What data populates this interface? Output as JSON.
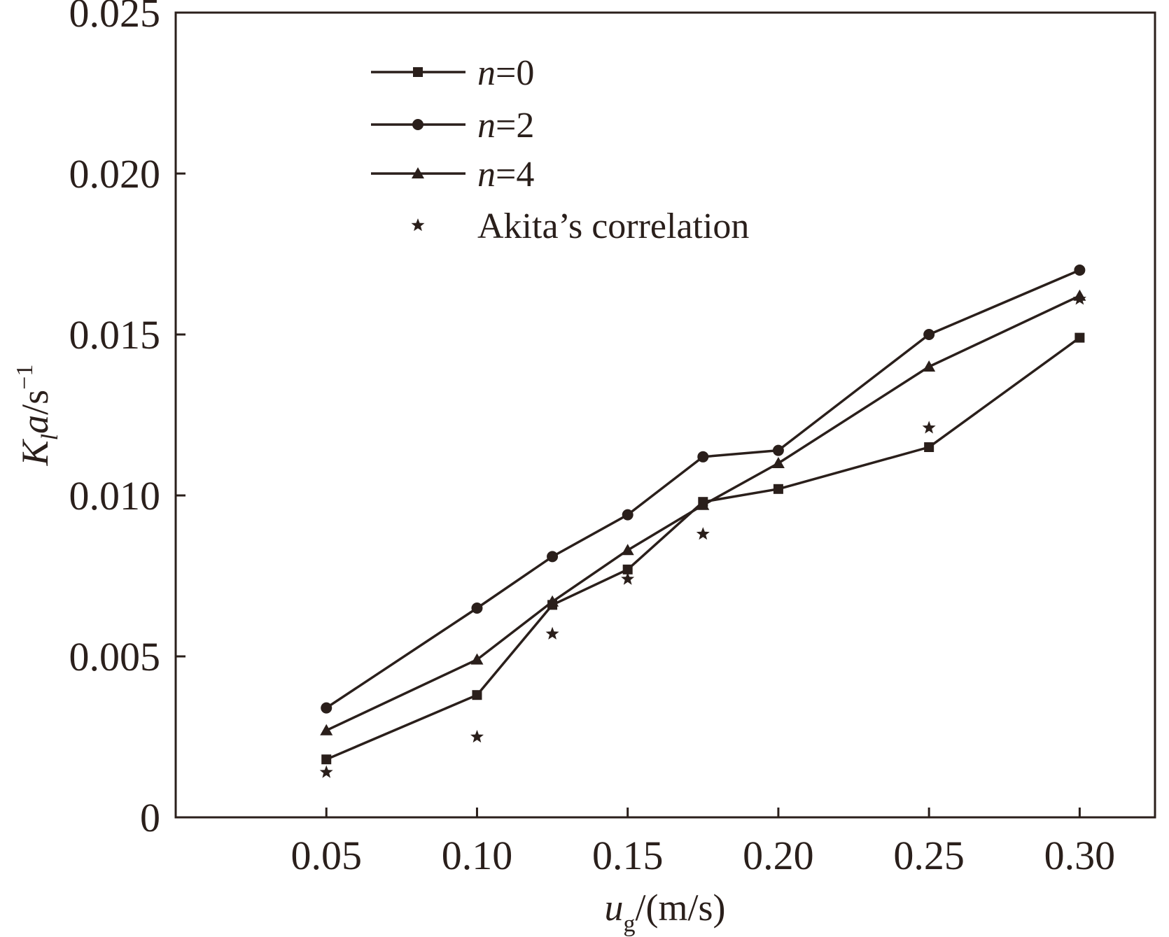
{
  "chart_data": {
    "type": "line",
    "title": "",
    "xlabel": {
      "main": "u",
      "sub": "g",
      "rest": "/(m/s)"
    },
    "ylabel": {
      "k": "K",
      "sub": "l",
      "a": "a",
      "unit": "/s",
      "sup": "−1"
    },
    "xlim": [
      0.0,
      0.325
    ],
    "ylim": [
      0,
      0.025
    ],
    "xticks": [
      0.05,
      0.1,
      0.15,
      0.2,
      0.25,
      0.3
    ],
    "xtick_labels": [
      "0.05",
      "0.10",
      "0.15",
      "0.20",
      "0.25",
      "0.30"
    ],
    "yticks": [
      0,
      0.005,
      0.01,
      0.015,
      0.02,
      0.025
    ],
    "ytick_labels": [
      "0",
      "0.005",
      "0.010",
      "0.015",
      "0.020",
      "0.025"
    ],
    "grid": false,
    "legend_position": "top-left",
    "series": [
      {
        "name": "n=0",
        "name_italic": "n",
        "name_rest": "=0",
        "marker": "square",
        "line": true,
        "x": [
          0.05,
          0.1,
          0.125,
          0.15,
          0.175,
          0.2,
          0.25,
          0.3
        ],
        "y": [
          0.0018,
          0.0038,
          0.0066,
          0.0077,
          0.0098,
          0.0102,
          0.0115,
          0.0149
        ]
      },
      {
        "name": "n=2",
        "name_italic": "n",
        "name_rest": "=2",
        "marker": "circle",
        "line": true,
        "x": [
          0.05,
          0.1,
          0.125,
          0.15,
          0.175,
          0.2,
          0.25,
          0.3
        ],
        "y": [
          0.0034,
          0.0065,
          0.0081,
          0.0094,
          0.0112,
          0.0114,
          0.015,
          0.017
        ]
      },
      {
        "name": "n=4",
        "name_italic": "n",
        "name_rest": "=4",
        "marker": "triangle",
        "line": true,
        "x": [
          0.05,
          0.1,
          0.125,
          0.15,
          0.175,
          0.2,
          0.25,
          0.3
        ],
        "y": [
          0.0027,
          0.0049,
          0.0067,
          0.0083,
          0.0097,
          0.011,
          0.014,
          0.0162
        ]
      },
      {
        "name": "Akita’s correlation",
        "name_italic": "",
        "name_rest": "Akita’s correlation",
        "marker": "star",
        "line": false,
        "x": [
          0.05,
          0.1,
          0.125,
          0.15,
          0.175,
          0.25,
          0.3
        ],
        "y": [
          0.0014,
          0.0025,
          0.0057,
          0.0074,
          0.0088,
          0.0121,
          0.0161
        ]
      }
    ],
    "colors": {
      "ink": "#2a1f1b"
    }
  }
}
